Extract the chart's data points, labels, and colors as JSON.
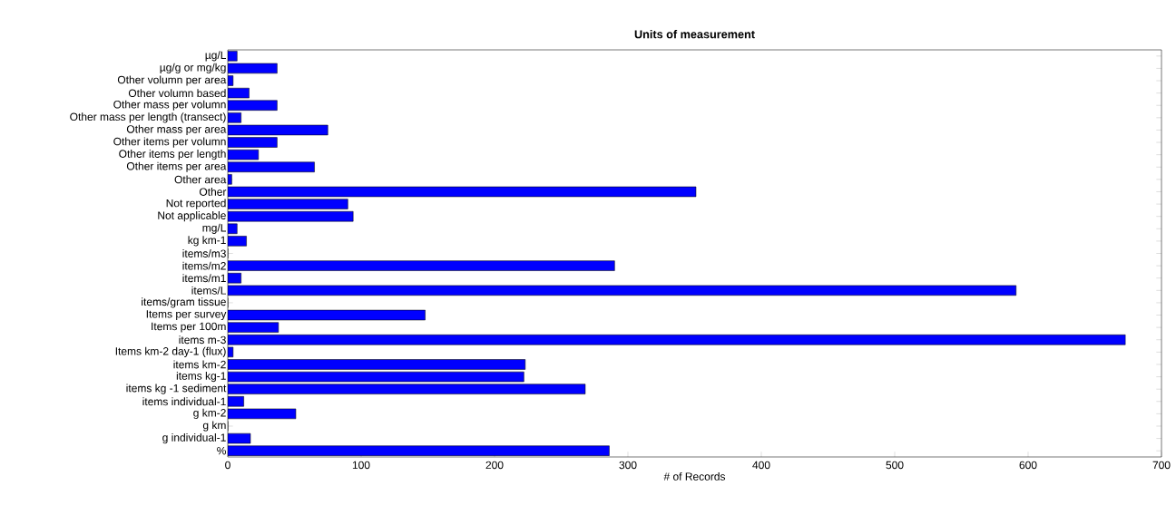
{
  "chart_data": {
    "type": "bar",
    "orientation": "horizontal",
    "title": "Units of measurement",
    "xlabel": "# of Records",
    "categories": [
      "µg/L",
      "µg/g or mg/kg",
      "Other volumn per area",
      "Other volumn based",
      "Other mass per volumn",
      "Other mass per length (transect)",
      "Other mass per area",
      "Other items per volumn",
      "Other items per length",
      "Other items per area",
      "Other area",
      "Other",
      "Not reported",
      "Not applicable",
      "mg/L",
      "kg km-1",
      "items/m3",
      "items/m2",
      "items/m1",
      "items/L",
      "items/gram tissue",
      "Items per survey",
      "Items per 100m",
      "items m-3",
      "Items km-2 day-1 (flux)",
      "items km-2",
      "items kg-1",
      "items kg -1 sediment",
      "items individual-1",
      "g km-2",
      "g km",
      "g individual-1",
      "%"
    ],
    "values": [
      7,
      37,
      4,
      16,
      37,
      10,
      75,
      37,
      23,
      65,
      3,
      351,
      90,
      94,
      7,
      14,
      0,
      290,
      10,
      591,
      0,
      148,
      38,
      673,
      4,
      223,
      222,
      268,
      12,
      51,
      0,
      17,
      286
    ],
    "color": "#0000ff",
    "xlim": [
      0,
      700
    ],
    "xticks": [
      0,
      100,
      200,
      300,
      400,
      500,
      600,
      700
    ]
  }
}
